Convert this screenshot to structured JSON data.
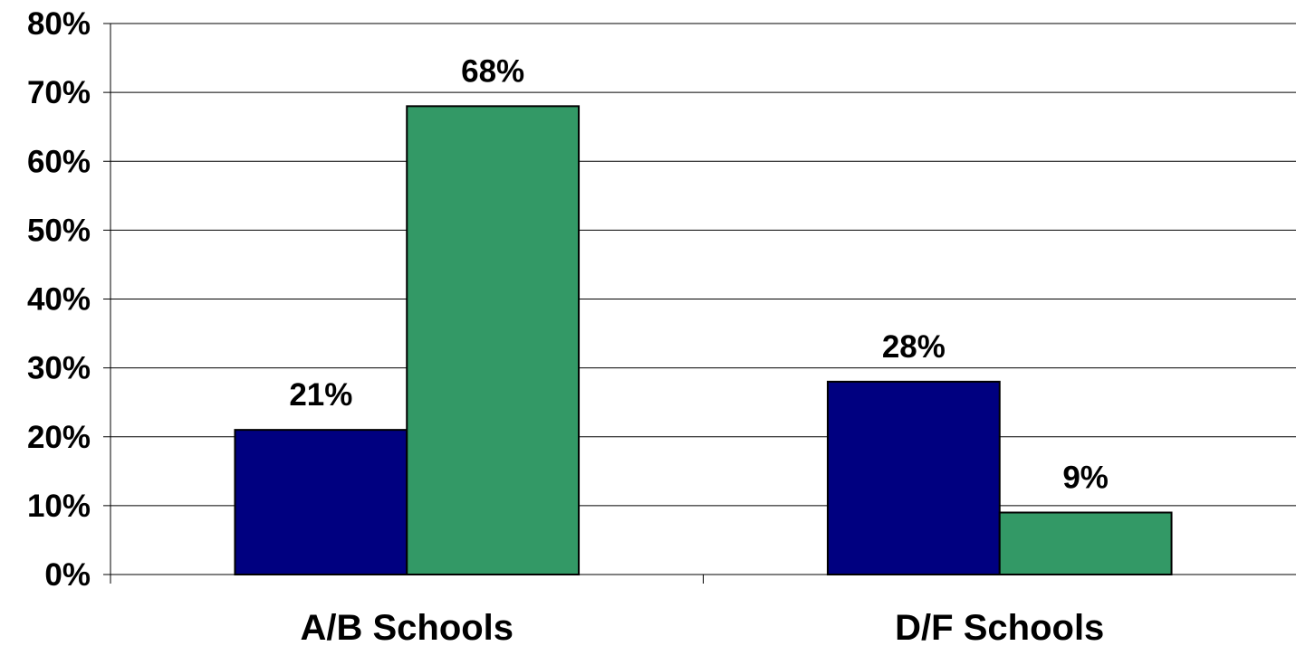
{
  "chart_data": {
    "type": "bar",
    "categories": [
      "A/B Schools",
      "D/F Schools"
    ],
    "series": [
      {
        "color": "#000080",
        "values": [
          21,
          28
        ]
      },
      {
        "color": "#339966",
        "values": [
          68,
          9
        ]
      }
    ],
    "data_labels": [
      [
        "21%",
        "28%"
      ],
      [
        "68%",
        "9%"
      ]
    ],
    "ylim": [
      0,
      80
    ],
    "y_ticks": [
      0,
      10,
      20,
      30,
      40,
      50,
      60,
      70,
      80
    ],
    "y_tick_labels": [
      "0%",
      "10%",
      "20%",
      "30%",
      "40%",
      "50%",
      "60%",
      "70%",
      "80%"
    ],
    "grid": true,
    "legend": "none"
  }
}
